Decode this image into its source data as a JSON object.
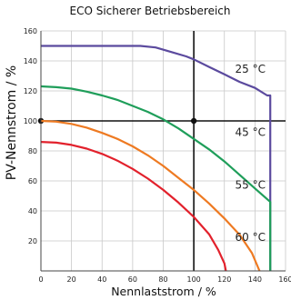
{
  "chart_data": {
    "type": "line",
    "title": "ECO Sicherer Betriebsbereich",
    "xlabel": "Nennlaststrom / %",
    "ylabel": "PV-Nennstrom / %",
    "xlim": [
      0,
      160
    ],
    "ylim": [
      0,
      160
    ],
    "xticks": [
      0,
      20,
      40,
      60,
      80,
      100,
      120,
      140,
      160
    ],
    "yticks": [
      20,
      40,
      60,
      80,
      100,
      120,
      140,
      160
    ],
    "grid": true,
    "series": [
      {
        "name": "25 °C",
        "color": "#5b4a9e",
        "points": [
          [
            0,
            150
          ],
          [
            65,
            150
          ],
          [
            75,
            149
          ],
          [
            85,
            146
          ],
          [
            95,
            143
          ],
          [
            100,
            141
          ],
          [
            110,
            136
          ],
          [
            120,
            131
          ],
          [
            130,
            126
          ],
          [
            140,
            122
          ],
          [
            148,
            117
          ],
          [
            150,
            117
          ],
          [
            150,
            0
          ]
        ]
      },
      {
        "name": "45 °C",
        "color": "#1f9e5a",
        "points": [
          [
            0,
            123
          ],
          [
            10,
            122.5
          ],
          [
            20,
            121.5
          ],
          [
            30,
            119.5
          ],
          [
            40,
            117
          ],
          [
            50,
            114
          ],
          [
            60,
            110
          ],
          [
            70,
            106
          ],
          [
            80,
            101
          ],
          [
            90,
            95
          ],
          [
            100,
            88
          ],
          [
            110,
            81
          ],
          [
            120,
            73
          ],
          [
            130,
            64
          ],
          [
            140,
            55
          ],
          [
            150,
            46
          ],
          [
            150,
            0
          ]
        ]
      },
      {
        "name": "55 °C",
        "color": "#ee7a22",
        "points": [
          [
            0,
            100
          ],
          [
            10,
            99.5
          ],
          [
            20,
            98
          ],
          [
            30,
            95.5
          ],
          [
            40,
            92
          ],
          [
            50,
            88
          ],
          [
            60,
            83
          ],
          [
            70,
            77
          ],
          [
            80,
            70
          ],
          [
            90,
            62
          ],
          [
            100,
            54
          ],
          [
            110,
            45
          ],
          [
            120,
            35
          ],
          [
            130,
            24
          ],
          [
            138,
            12
          ],
          [
            143,
            0
          ]
        ]
      },
      {
        "name": "60 °C",
        "color": "#e2212c",
        "points": [
          [
            0,
            86
          ],
          [
            10,
            85.5
          ],
          [
            20,
            84
          ],
          [
            30,
            81.5
          ],
          [
            40,
            78
          ],
          [
            50,
            73.5
          ],
          [
            60,
            68
          ],
          [
            70,
            61.5
          ],
          [
            80,
            54
          ],
          [
            90,
            45.5
          ],
          [
            100,
            36
          ],
          [
            110,
            24.5
          ],
          [
            116,
            14
          ],
          [
            120,
            5
          ],
          [
            121,
            0
          ]
        ]
      }
    ],
    "reference_lines": {
      "x": 100,
      "y": 100
    },
    "reference_points": [
      [
        0,
        100
      ],
      [
        100,
        100
      ]
    ]
  }
}
